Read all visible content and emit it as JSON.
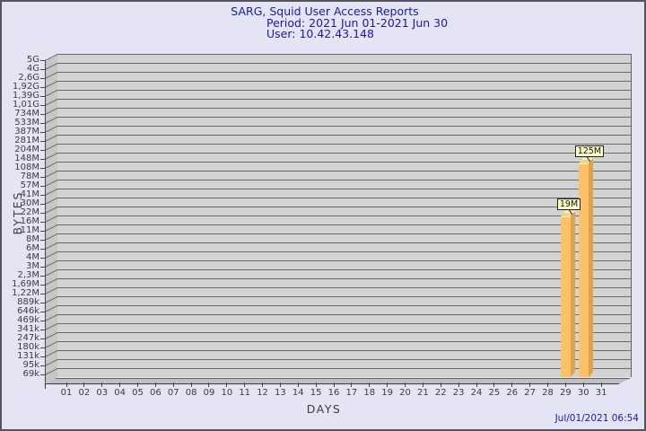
{
  "title": {
    "line1": "SARG, Squid User Access Reports",
    "line2": "Period: 2021 Jun 01-2021 Jun 30",
    "line3": "User: 10.42.43.148"
  },
  "footer": {
    "generated_timestamp": "Jul/01/2021 06:54"
  },
  "chart_data": {
    "type": "bar",
    "title": "SARG, Squid User Access Reports",
    "period": "2021 Jun 01-2021 Jun 30",
    "user": "10.42.43.148",
    "xlabel": "DAYS",
    "ylabel": "BYTES",
    "y_scale": "log",
    "grid": true,
    "legend": "none",
    "y_tick_labels": [
      "5G",
      "4G",
      "2,6G",
      "1,92G",
      "1,39G",
      "1,01G",
      "734M",
      "533M",
      "387M",
      "281M",
      "204M",
      "148M",
      "108M",
      "78M",
      "57M",
      "41M",
      "30M",
      "22M",
      "16M",
      "11M",
      "8M",
      "6M",
      "4M",
      "3M",
      "2,3M",
      "1,69M",
      "1,22M",
      "889k",
      "646k",
      "469k",
      "341k",
      "247k",
      "180k",
      "131k",
      "95k",
      "69k"
    ],
    "x_tick_labels": [
      "01",
      "02",
      "03",
      "04",
      "05",
      "06",
      "07",
      "08",
      "09",
      "10",
      "11",
      "12",
      "13",
      "14",
      "15",
      "16",
      "17",
      "18",
      "19",
      "20",
      "21",
      "22",
      "23",
      "24",
      "25",
      "26",
      "27",
      "28",
      "29",
      "30",
      "31"
    ],
    "y_axis_top_value_bytes": 5000000000,
    "y_axis_bottom_value_bytes": 69000,
    "bars": [
      {
        "day": 29,
        "label": "19M",
        "bytes": 19000000
      },
      {
        "day": 30,
        "label": "125M",
        "bytes": 125000000
      }
    ],
    "colors": {
      "background": "#e4e4f4",
      "plot_bg": "#d3d3d3",
      "wall_bg": "#c6c6c6",
      "floor_bg": "#bfbfbf",
      "grid_line": "#6a6a6a",
      "bar_front": "#fcc169",
      "bar_side": "#dda24a",
      "bar_top": "#f6d484",
      "bar_highlight": "#fff3c0",
      "value_box_bg": "#ffffc8",
      "title_text": "#1a1a9e",
      "axis_text": "#3c3c3c"
    }
  }
}
